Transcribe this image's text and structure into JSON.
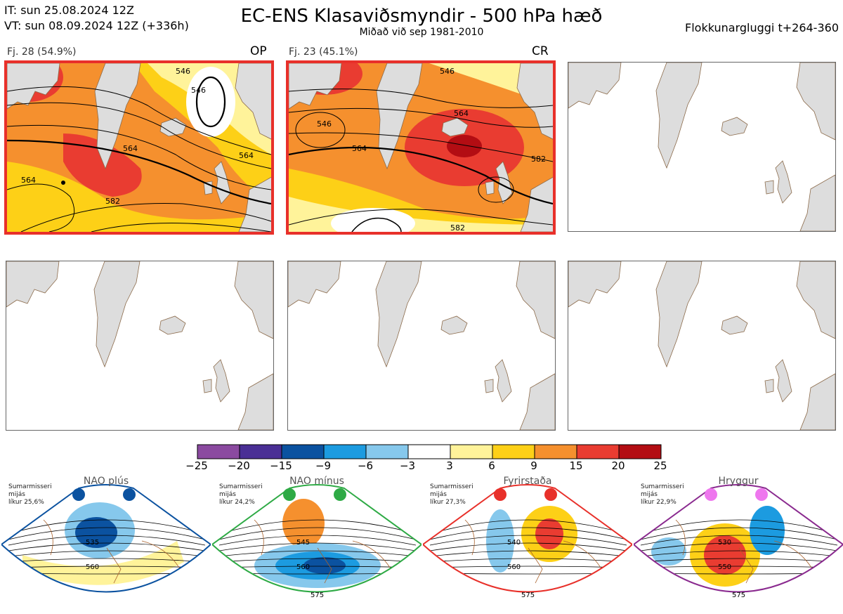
{
  "header": {
    "it": "IT: sun 25.08.2024 12Z",
    "vt": "VT: sun 08.09.2024 12Z  (+336h)",
    "title": "EC-ENS Klasaviðsmyndir - 500 hPa hæð",
    "subtitle": "Miðað við sep 1981-2010",
    "window": "Flokkunargluggi t+264-360"
  },
  "panels": [
    {
      "title": "Fj. 28 (54.9%)",
      "tag": "OP",
      "highlighted": true,
      "contours": [
        "546",
        "546",
        "564",
        "564",
        "564",
        "582"
      ]
    },
    {
      "title": "Fj. 23 (45.1%)",
      "tag": "CR",
      "highlighted": true,
      "contours": [
        "546",
        "546",
        "564",
        "564",
        "582",
        "582"
      ]
    },
    {
      "title": "",
      "tag": "",
      "highlighted": false
    },
    {
      "title": "",
      "tag": "",
      "highlighted": false
    },
    {
      "title": "",
      "tag": "",
      "highlighted": false
    },
    {
      "title": "",
      "tag": "",
      "highlighted": false
    }
  ],
  "colorbar": {
    "colors": [
      "#8b4aa0",
      "#4a2f95",
      "#0b52a0",
      "#1c9be0",
      "#86c8ec",
      "#ffffff",
      "#fff39a",
      "#fdd017",
      "#f5902e",
      "#e93c31",
      "#b30d13"
    ],
    "ticks": [
      "−25",
      "−20",
      "−15",
      "−9",
      "−6",
      "−3",
      "3",
      "6",
      "9",
      "15",
      "20",
      "25"
    ]
  },
  "regimes": [
    {
      "name": "NAO plús",
      "season": "Sumarmisseri",
      "mean": "mijás",
      "prob": "líkur 25,6%",
      "border": "#0b52a0",
      "dot": "#0b52a0",
      "contours": [
        "535",
        "560"
      ]
    },
    {
      "name": "NAO mínus",
      "season": "Sumarmisseri",
      "mean": "mijás",
      "prob": "líkur 24,2%",
      "border": "#2eaa45",
      "dot": "#2eaa45",
      "contours": [
        "545",
        "560",
        "575"
      ]
    },
    {
      "name": "Fyrirstaða",
      "season": "Sumarmisseri",
      "mean": "mijás",
      "prob": "líkur 27,3%",
      "border": "#e8302a",
      "dot": "#e8302a",
      "contours": [
        "540",
        "560",
        "575"
      ]
    },
    {
      "name": "Hryggur",
      "season": "Sumarmisseri",
      "mean": "mijás",
      "prob": "líkur 22,9%",
      "border": "#8a2a8f",
      "dot": "#ee77ee",
      "contours": [
        "530",
        "550",
        "575"
      ]
    }
  ]
}
